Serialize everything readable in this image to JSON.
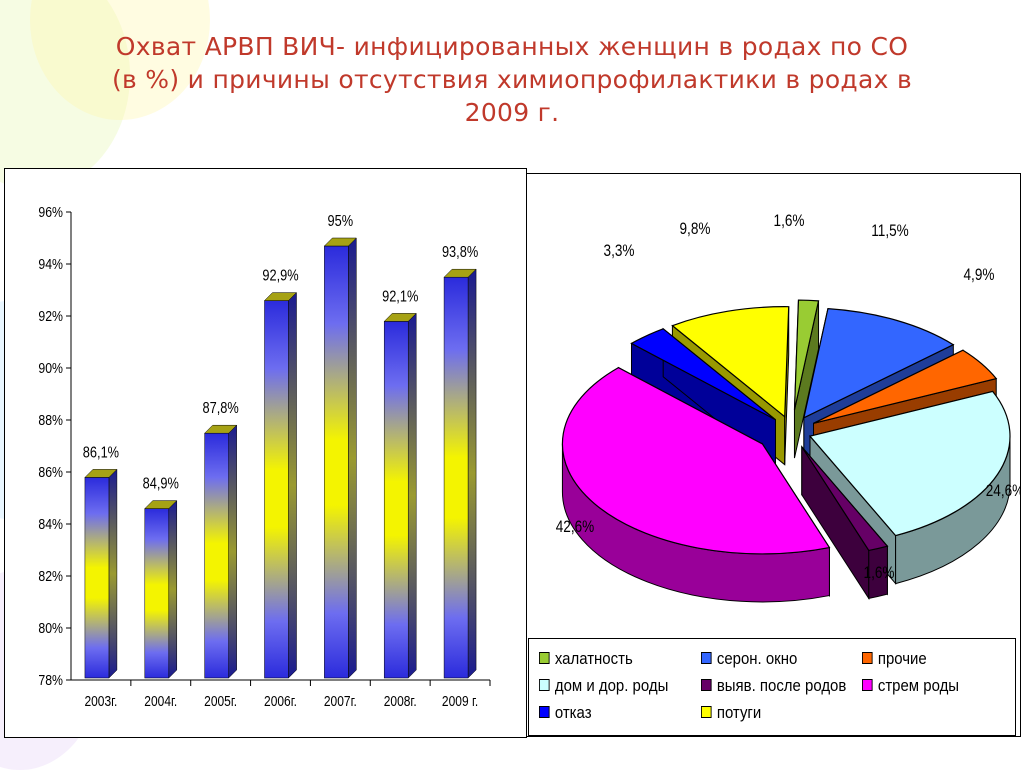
{
  "title_lines": [
    "Охват АРВП ВИЧ- инфицированных женщин в родах по СО",
    "(в %) и причины отсутствия химиопрофилактики в родах в",
    "2009 г."
  ],
  "colors": {
    "title": "#c0392b",
    "bar_blue": "#2b2bdc",
    "bar_yellow": "#f4f400"
  },
  "chart_data": [
    {
      "type": "bar",
      "categories": [
        "2003г.",
        "2004г.",
        "2005г.",
        "2006г.",
        "2007г.",
        "2008г.",
        "2009 г."
      ],
      "values": [
        86.1,
        84.9,
        87.8,
        92.9,
        95.0,
        92.1,
        93.8
      ],
      "data_labels": [
        "86,1%",
        "84,9%",
        "87,8%",
        "92,9%",
        "95%",
        "92,1%",
        "93,8%"
      ],
      "ylim": [
        78,
        96
      ],
      "yticks": [
        "78%",
        "80%",
        "82%",
        "84%",
        "86%",
        "88%",
        "90%",
        "92%",
        "94%",
        "96%"
      ],
      "style": "3d-gradient"
    },
    {
      "type": "pie",
      "style": "3d-exploded",
      "slices": [
        {
          "name": "халатность",
          "value": 1.6,
          "label": "1,6%",
          "color": "#99cc33"
        },
        {
          "name": "серон. окно",
          "value": 11.5,
          "label": "11,5%",
          "color": "#3366ff"
        },
        {
          "name": "прочие",
          "value": 4.9,
          "label": "4,9%",
          "color": "#ff6600"
        },
        {
          "name": "дом и дор. роды",
          "value": 24.6,
          "label": "24,6%",
          "color": "#ccffff"
        },
        {
          "name": "выяв. после родов",
          "value": 1.6,
          "label": "1,6%",
          "color": "#660066"
        },
        {
          "name": "стрем роды",
          "value": 42.6,
          "label": "42,6%",
          "color": "#ff00ff"
        },
        {
          "name": "отказ",
          "value": 3.3,
          "label": "3,3%",
          "color": "#0000ff"
        },
        {
          "name": "потуги",
          "value": 9.8,
          "label": "9,8%",
          "color": "#ffff00"
        }
      ],
      "legend_position": "bottom"
    }
  ]
}
